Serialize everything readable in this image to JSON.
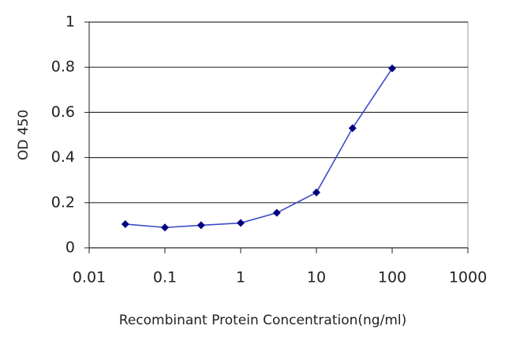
{
  "chart_data": {
    "type": "line",
    "x_label": "Recombinant Protein Concentration(ng/ml)",
    "y_label": "OD 450",
    "x": [
      0.03,
      0.1,
      0.3,
      1,
      3,
      10,
      30,
      100
    ],
    "series": [
      {
        "color": "#000080",
        "line_color": "#3b4bc8",
        "values": [
          0.105,
          0.09,
          0.1,
          0.11,
          0.155,
          0.245,
          0.53,
          0.795
        ]
      }
    ],
    "xscale": "log",
    "xlim": [
      0.01,
      1000
    ],
    "xticks": [
      0.01,
      0.1,
      1,
      10,
      100,
      1000
    ],
    "ylim": [
      0,
      1
    ],
    "yticks": [
      0,
      0.2,
      0.4,
      0.6,
      0.8,
      1
    ],
    "grid": true
  }
}
